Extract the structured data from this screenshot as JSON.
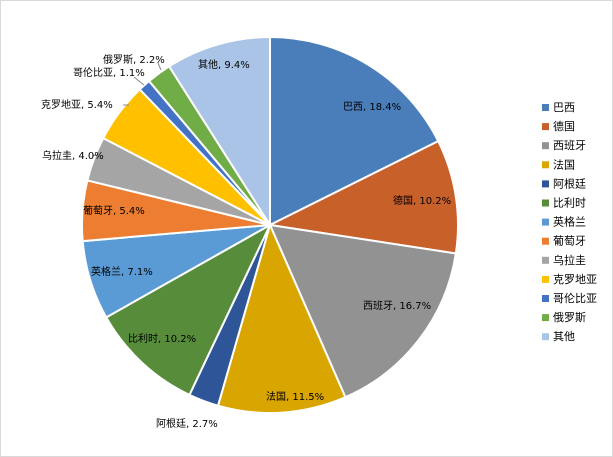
{
  "chart_data": {
    "type": "pie",
    "title": "",
    "legend_position": "right",
    "slices": [
      {
        "name": "巴西",
        "value": 18.4,
        "label": "巴西, 18.4%",
        "color": "#4A7EBB"
      },
      {
        "name": "德国",
        "value": 10.2,
        "label": "德国, 10.2%",
        "color": "#C8602A"
      },
      {
        "name": "西班牙",
        "value": 16.7,
        "label": "西班牙, 16.7%",
        "color": "#929292"
      },
      {
        "name": "法国",
        "value": 11.5,
        "label": "法国, 11.5%",
        "color": "#D9A500"
      },
      {
        "name": "阿根廷",
        "value": 2.7,
        "label": "阿根廷, 2.7%",
        "color": "#2E5597"
      },
      {
        "name": "比利时",
        "value": 10.2,
        "label": "比利时, 10.2%",
        "color": "#578D3A"
      },
      {
        "name": "英格兰",
        "value": 7.1,
        "label": "英格兰, 7.1%",
        "color": "#5B9BD5"
      },
      {
        "name": "葡萄牙",
        "value": 5.4,
        "label": "葡萄牙, 5.4%",
        "color": "#ED7D31"
      },
      {
        "name": "乌拉圭",
        "value": 4.0,
        "label": "乌拉圭, 4.0%",
        "color": "#A5A5A5"
      },
      {
        "name": "克罗地亚",
        "value": 5.4,
        "label": "克罗地亚, 5.4%",
        "color": "#FFC000"
      },
      {
        "name": "哥伦比亚",
        "value": 1.1,
        "label": "哥伦比亚, 1.1%",
        "color": "#4472C4"
      },
      {
        "name": "俄罗斯",
        "value": 2.2,
        "label": "俄罗斯, 2.2%",
        "color": "#70AD47"
      },
      {
        "name": "其他",
        "value": 9.4,
        "label": "其他, 9.4%",
        "color": "#A9C4E6"
      }
    ]
  }
}
